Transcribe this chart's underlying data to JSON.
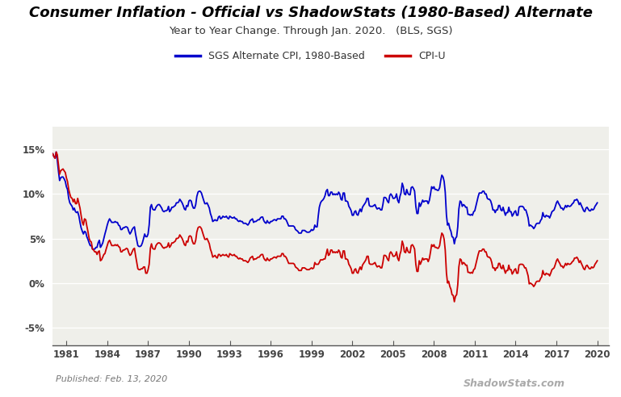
{
  "title": "Consumer Inflation - Official vs ShadowStats (1980-Based) Alternate",
  "subtitle": "Year to Year Change. Through Jan. 2020.   (BLS, SGS)",
  "legend_blue": "SGS Alternate CPI, 1980-Based",
  "legend_red": "CPI-U",
  "xlabel_years": [
    1981,
    1984,
    1987,
    1990,
    1993,
    1996,
    1999,
    2002,
    2005,
    2008,
    2011,
    2014,
    2017,
    2020
  ],
  "yticks": [
    -5,
    0,
    5,
    10,
    15
  ],
  "ytick_labels": [
    "-5%",
    "0%",
    "5%",
    "10%",
    "15%"
  ],
  "ylim": [
    -7.0,
    17.5
  ],
  "xlim_start": 1980.0,
  "xlim_end": 2020.83,
  "blue_color": "#0000CC",
  "red_color": "#CC0000",
  "bg_color": "#FFFFFF",
  "plot_bg_color": "#EFEFEA",
  "grid_color": "#FFFFFF",
  "published_text": "Published: Feb. 13, 2020",
  "watermark_text": "ShadowStats.com",
  "title_fontsize": 13,
  "subtitle_fontsize": 9.5,
  "tick_label_fontsize": 8.5,
  "legend_fontsize": 9
}
